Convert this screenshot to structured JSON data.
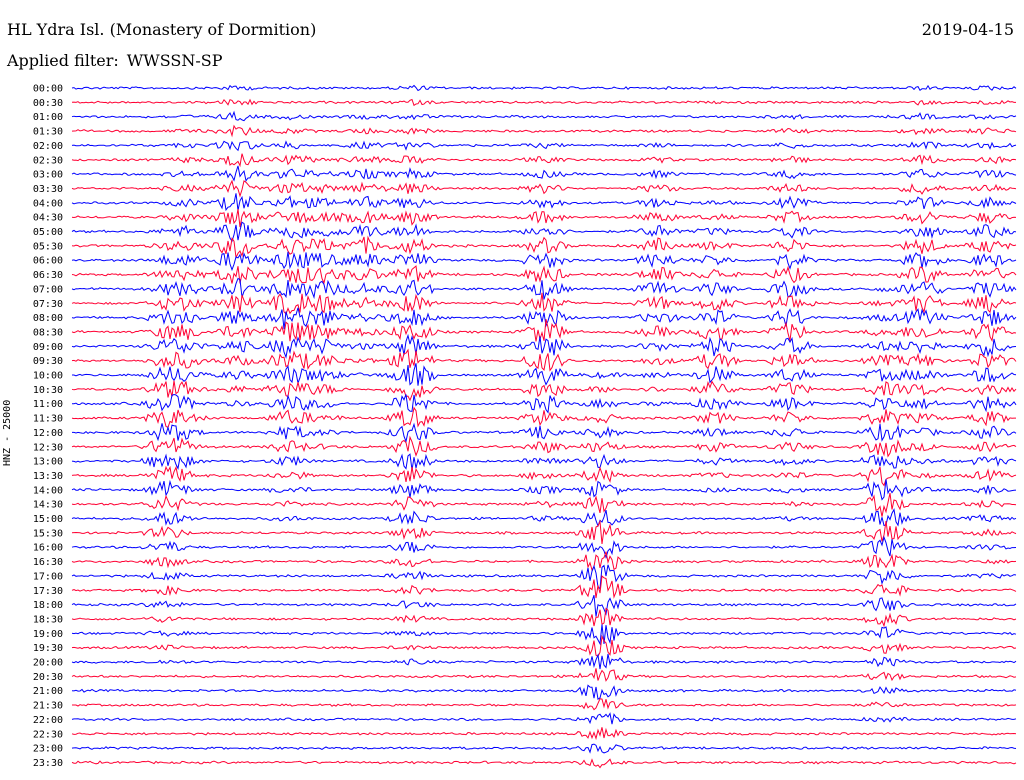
{
  "header": {
    "station": "HL Ydra Isl. (Monastery of Dormition)",
    "date": "2019-04-15",
    "filter_prefix": "Applied filter:",
    "filter_name": "WWSSN-SP"
  },
  "channel_label": "HNZ - 25000",
  "colors": {
    "trace_a": "#0000ff",
    "trace_b": "#ff0033",
    "text": "#000000",
    "background": "#ffffff"
  },
  "chart_data": {
    "type": "line",
    "title": "HL Ydra Isl. (Monastery of Dormition)",
    "ylabel": "HNZ - 25000",
    "row_labels": [
      "00:00",
      "00:30",
      "01:00",
      "01:30",
      "02:00",
      "02:30",
      "03:00",
      "03:30",
      "04:00",
      "04:30",
      "05:00",
      "05:30",
      "06:00",
      "06:30",
      "07:00",
      "07:30",
      "08:00",
      "08:30",
      "09:00",
      "09:30",
      "10:00",
      "10:30",
      "11:00",
      "11:30",
      "12:00",
      "12:30",
      "13:00",
      "13:30",
      "14:00",
      "14:30",
      "15:00",
      "15:30",
      "16:00",
      "16:30",
      "17:00",
      "17:30",
      "18:00",
      "18:30",
      "19:00",
      "19:30",
      "20:00",
      "20:30",
      "21:00",
      "21:30",
      "22:00",
      "22:30",
      "23:00",
      "23:30"
    ],
    "trace_colors": [
      "#0000ff",
      "#ff0033"
    ],
    "row_minutes": 30,
    "events": [
      {
        "x": 0.1,
        "rows": [
          10,
          40
        ],
        "amp": 3
      },
      {
        "x": 0.12,
        "rows": [
          2,
          30
        ],
        "amp": 2
      },
      {
        "x": 0.175,
        "rows": [
          0,
          22
        ],
        "amp": 4
      },
      {
        "x": 0.23,
        "rows": [
          2,
          30
        ],
        "amp": 4
      },
      {
        "x": 0.265,
        "rows": [
          5,
          25
        ],
        "amp": 3
      },
      {
        "x": 0.31,
        "rows": [
          2,
          20
        ],
        "amp": 2.5
      },
      {
        "x": 0.36,
        "rows": [
          0,
          40
        ],
        "amp": 4
      },
      {
        "x": 0.5,
        "rows": [
          4,
          30
        ],
        "amp": 4
      },
      {
        "x": 0.56,
        "rows": [
          20,
          50
        ],
        "amp": 4.5
      },
      {
        "x": 0.62,
        "rows": [
          4,
          22
        ],
        "amp": 2.5
      },
      {
        "x": 0.68,
        "rows": [
          8,
          28
        ],
        "amp": 3
      },
      {
        "x": 0.76,
        "rows": [
          2,
          30
        ],
        "amp": 3
      },
      {
        "x": 0.86,
        "rows": [
          14,
          44
        ],
        "amp": 4
      },
      {
        "x": 0.9,
        "rows": [
          0,
          28
        ],
        "amp": 3
      },
      {
        "x": 0.97,
        "rows": [
          0,
          34
        ],
        "amp": 3
      }
    ],
    "grid": false,
    "legend": "none"
  }
}
